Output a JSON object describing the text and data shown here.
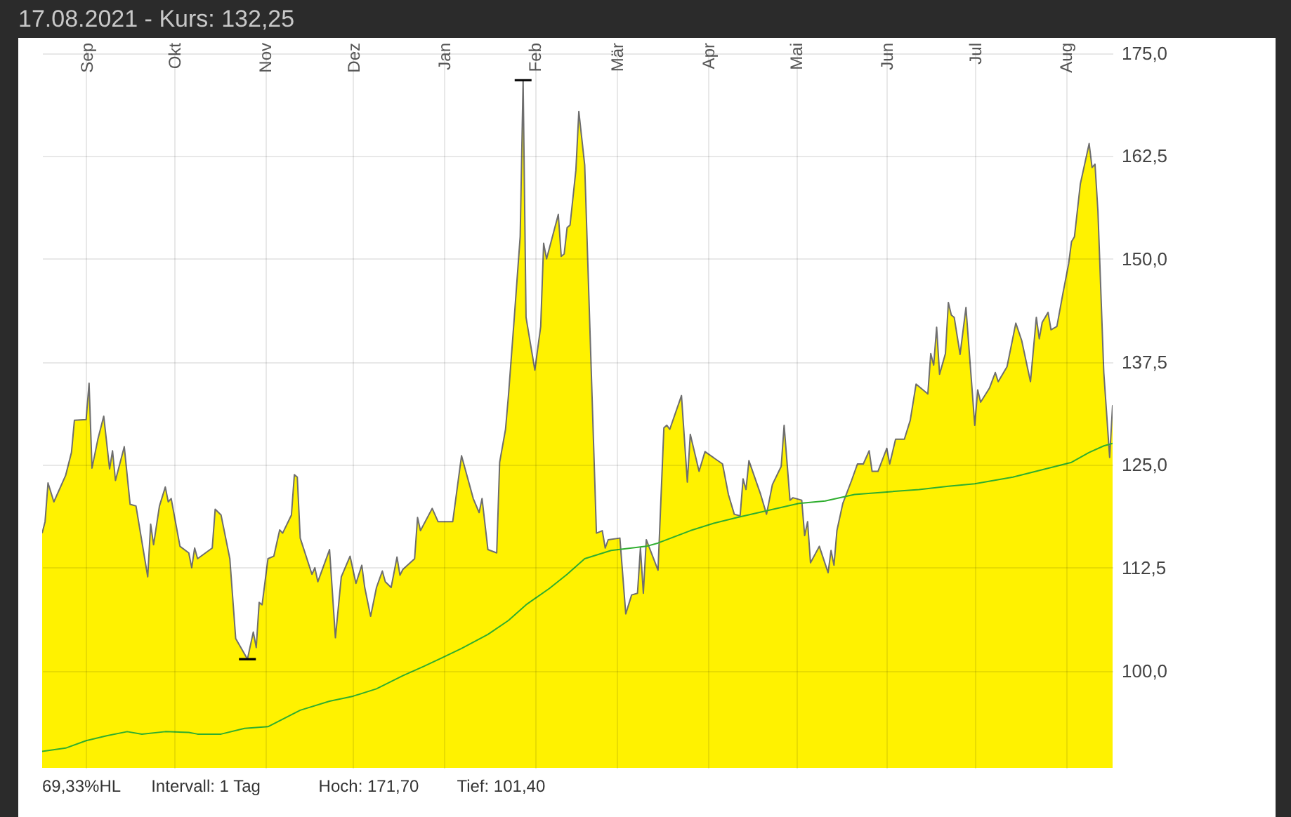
{
  "chart_data": {
    "type": "area",
    "title": "17.08.2021  - Kurs: 132,25",
    "xlim": [
      "2020-08-17",
      "2021-08-17"
    ],
    "xticks": [
      {
        "value": "2020-09-01",
        "label": "Sep"
      },
      {
        "value": "2020-10-01",
        "label": "Okt"
      },
      {
        "value": "2020-11-01",
        "label": "Nov"
      },
      {
        "value": "2020-12-01",
        "label": "Dez"
      },
      {
        "value": "2021-01-01",
        "label": "Jan"
      },
      {
        "value": "2021-02-01",
        "label": "Feb"
      },
      {
        "value": "2021-03-01",
        "label": "Mär"
      },
      {
        "value": "2021-04-01",
        "label": "Apr"
      },
      {
        "value": "2021-05-01",
        "label": "Mai"
      },
      {
        "value": "2021-06-01",
        "label": "Jun"
      },
      {
        "value": "2021-07-01",
        "label": "Jul"
      },
      {
        "value": "2021-08-01",
        "label": "Aug"
      }
    ],
    "ylim": [
      88.2,
      175.3
    ],
    "yticks": [
      {
        "value": 100,
        "label": "100,0"
      },
      {
        "value": 112.5,
        "label": "112,5"
      },
      {
        "value": 125,
        "label": "125,0"
      },
      {
        "value": 137.5,
        "label": "137,5"
      },
      {
        "value": 150,
        "label": "150,0"
      },
      {
        "value": 162.5,
        "label": "162,5"
      },
      {
        "value": 175,
        "label": "175,0"
      }
    ],
    "grid": true,
    "series": [
      {
        "color": "#fff200",
        "x": [
          "2020-08-17",
          "2020-08-18",
          "2020-08-19",
          "2020-08-21",
          "2020-08-25",
          "2020-08-27",
          "2020-08-28",
          "2020-09-01",
          "2020-09-02",
          "2020-09-03",
          "2020-09-05",
          "2020-09-07",
          "2020-09-09",
          "2020-09-10",
          "2020-09-11",
          "2020-09-14",
          "2020-09-16",
          "2020-09-18",
          "2020-09-22",
          "2020-09-23",
          "2020-09-24",
          "2020-09-26",
          "2020-09-28",
          "2020-09-29",
          "2020-09-30",
          "2020-10-03",
          "2020-10-06",
          "2020-10-07",
          "2020-10-08",
          "2020-10-09",
          "2020-10-14",
          "2020-10-15",
          "2020-10-17",
          "2020-10-20",
          "2020-10-22",
          "2020-10-26",
          "2020-10-28",
          "2020-10-29",
          "2020-10-30",
          "2020-10-31",
          "2020-11-02",
          "2020-11-04",
          "2020-11-06",
          "2020-11-07",
          "2020-11-10",
          "2020-11-11",
          "2020-11-12",
          "2020-11-13",
          "2020-11-17",
          "2020-11-18",
          "2020-11-19",
          "2020-11-23",
          "2020-11-25",
          "2020-11-27",
          "2020-11-30",
          "2020-12-02",
          "2020-12-04",
          "2020-12-05",
          "2020-12-07",
          "2020-12-09",
          "2020-12-11",
          "2020-12-12",
          "2020-12-14",
          "2020-12-16",
          "2020-12-17",
          "2020-12-18",
          "2020-12-22",
          "2020-12-23",
          "2020-12-24",
          "2020-12-28",
          "2020-12-30",
          "2021-01-04",
          "2021-01-07",
          "2021-01-11",
          "2021-01-13",
          "2021-01-14",
          "2021-01-16",
          "2021-01-19",
          "2021-01-20",
          "2021-01-22",
          "2021-01-23",
          "2021-01-25",
          "2021-01-27",
          "2021-01-28",
          "2021-01-29",
          "2021-02-01",
          "2021-02-03",
          "2021-02-04",
          "2021-02-05",
          "2021-02-09",
          "2021-02-10",
          "2021-02-11",
          "2021-02-12",
          "2021-02-13",
          "2021-02-15",
          "2021-02-16",
          "2021-02-18",
          "2021-02-22",
          "2021-02-24",
          "2021-02-25",
          "2021-02-26",
          "2021-03-02",
          "2021-03-04",
          "2021-03-06",
          "2021-03-08",
          "2021-03-09",
          "2021-03-10",
          "2021-03-11",
          "2021-03-15",
          "2021-03-17",
          "2021-03-18",
          "2021-03-19",
          "2021-03-23",
          "2021-03-25",
          "2021-03-26",
          "2021-03-29",
          "2021-03-31",
          "2021-04-06",
          "2021-04-08",
          "2021-04-10",
          "2021-04-12",
          "2021-04-13",
          "2021-04-14",
          "2021-04-15",
          "2021-04-19",
          "2021-04-21",
          "2021-04-23",
          "2021-04-26",
          "2021-04-27",
          "2021-04-29",
          "2021-04-30",
          "2021-05-03",
          "2021-05-04",
          "2021-05-05",
          "2021-05-06",
          "2021-05-09",
          "2021-05-12",
          "2021-05-13",
          "2021-05-14",
          "2021-05-15",
          "2021-05-17",
          "2021-05-20",
          "2021-05-22",
          "2021-05-24",
          "2021-05-26",
          "2021-05-27",
          "2021-05-29",
          "2021-06-01",
          "2021-06-02",
          "2021-06-04",
          "2021-06-07",
          "2021-06-09",
          "2021-06-11",
          "2021-06-15",
          "2021-06-16",
          "2021-06-17",
          "2021-06-18",
          "2021-06-19",
          "2021-06-21",
          "2021-06-22",
          "2021-06-23",
          "2021-06-24",
          "2021-06-26",
          "2021-06-28",
          "2021-07-01",
          "2021-07-02",
          "2021-07-03",
          "2021-07-06",
          "2021-07-08",
          "2021-07-09",
          "2021-07-12",
          "2021-07-15",
          "2021-07-17",
          "2021-07-20",
          "2021-07-22",
          "2021-07-23",
          "2021-07-24",
          "2021-07-26",
          "2021-07-27",
          "2021-07-29",
          "2021-07-31",
          "2021-08-02",
          "2021-08-03",
          "2021-08-04",
          "2021-08-06",
          "2021-08-09",
          "2021-08-10",
          "2021-08-11",
          "2021-08-12",
          "2021-08-14",
          "2021-08-16",
          "2021-08-17"
        ],
        "values": [
          116.7,
          118.1,
          122.8,
          120.5,
          123.7,
          126.5,
          130.4,
          130.5,
          134.9,
          124.6,
          128.1,
          130.9,
          124.5,
          126.7,
          123.1,
          127.2,
          120.2,
          120.0,
          111.4,
          117.8,
          115.3,
          120.0,
          122.3,
          120.5,
          120.9,
          115.1,
          114.3,
          112.5,
          114.9,
          113.6,
          114.9,
          119.6,
          118.9,
          113.6,
          103.9,
          101.4,
          104.7,
          102.8,
          108.3,
          108.0,
          113.6,
          113.9,
          117.1,
          116.7,
          118.9,
          123.8,
          123.5,
          116.1,
          111.7,
          112.5,
          110.8,
          114.7,
          104.0,
          111.4,
          113.9,
          110.6,
          112.8,
          110.1,
          106.6,
          110.1,
          112.1,
          110.8,
          110.1,
          113.8,
          111.6,
          112.3,
          113.6,
          118.6,
          117.0,
          119.7,
          118.1,
          118.1,
          126.1,
          120.9,
          119.2,
          120.9,
          114.7,
          114.3,
          125.3,
          129.3,
          133.4,
          142.9,
          152.7,
          171.7,
          142.9,
          136.5,
          141.8,
          151.9,
          150.0,
          155.4,
          150.3,
          150.6,
          153.8,
          154.1,
          160.8,
          167.9,
          161.4,
          116.7,
          117.0,
          114.9,
          115.9,
          116.1,
          106.9,
          109.2,
          109.4,
          114.9,
          109.4,
          115.9,
          112.2,
          129.5,
          129.8,
          129.3,
          133.4,
          122.9,
          128.7,
          124.2,
          126.6,
          125.1,
          121.4,
          119.0,
          118.8,
          123.3,
          122.0,
          125.5,
          121.4,
          119.0,
          122.6,
          124.8,
          129.8,
          120.7,
          121.0,
          120.7,
          116.4,
          118.1,
          113.1,
          115.1,
          111.9,
          114.6,
          112.8,
          117.0,
          120.3,
          123.1,
          125.1,
          125.1,
          126.7,
          124.2,
          124.2,
          127.0,
          125.1,
          128.1,
          128.1,
          130.4,
          134.8,
          133.6,
          138.5,
          137.1,
          141.7,
          136.0,
          138.5,
          144.7,
          143.2,
          142.9,
          138.4,
          144.1,
          129.8,
          134.1,
          132.6,
          134.3,
          136.2,
          135.1,
          136.9,
          142.2,
          140.1,
          135.1,
          142.9,
          140.3,
          142.3,
          143.5,
          141.4,
          141.8,
          145.7,
          149.4,
          152.1,
          152.7,
          159.1,
          164.0,
          161.1,
          161.5,
          155.8,
          136.2,
          125.9,
          132.25
        ]
      },
      {
        "type": "line",
        "color": "#2fae2f",
        "x": [
          "2020-08-17",
          "2020-08-25",
          "2020-09-01",
          "2020-09-08",
          "2020-09-15",
          "2020-09-20",
          "2020-09-28",
          "2020-10-06",
          "2020-10-09",
          "2020-10-17",
          "2020-10-25",
          "2020-11-02",
          "2020-11-13",
          "2020-11-23",
          "2020-12-01",
          "2020-12-09",
          "2020-12-18",
          "2020-12-25",
          "2020-12-31",
          "2021-01-07",
          "2021-01-16",
          "2021-01-23",
          "2021-01-29",
          "2021-02-06",
          "2021-02-12",
          "2021-02-18",
          "2021-02-27",
          "2021-03-11",
          "2021-03-15",
          "2021-03-26",
          "2021-04-03",
          "2021-04-11",
          "2021-04-22",
          "2021-05-02",
          "2021-05-11",
          "2021-05-21",
          "2021-06-01",
          "2021-06-12",
          "2021-06-22",
          "2021-07-01",
          "2021-07-14",
          "2021-07-24",
          "2021-08-03",
          "2021-08-09",
          "2021-08-14",
          "2021-08-17"
        ],
        "values": [
          90.2,
          90.6,
          91.5,
          92.1,
          92.6,
          92.3,
          92.6,
          92.5,
          92.3,
          92.3,
          93.0,
          93.2,
          95.2,
          96.3,
          96.9,
          97.8,
          99.4,
          100.5,
          101.5,
          102.7,
          104.4,
          106.1,
          108.0,
          110.0,
          111.7,
          113.6,
          114.6,
          115.1,
          115.5,
          117.0,
          117.9,
          118.6,
          119.5,
          120.3,
          120.6,
          121.4,
          121.7,
          122.0,
          122.4,
          122.7,
          123.5,
          124.4,
          125.3,
          126.5,
          127.3,
          127.6
        ]
      },
      {
        "type": "scatter",
        "color": "#000000",
        "x": [
          "2020-10-26",
          "2021-01-28"
        ],
        "values": [
          101.4,
          171.7
        ]
      }
    ],
    "annotations": [
      "69,33%HL",
      "Intervall: 1 Tag",
      "Hoch: 171,70",
      "Tief: 101,40"
    ]
  }
}
